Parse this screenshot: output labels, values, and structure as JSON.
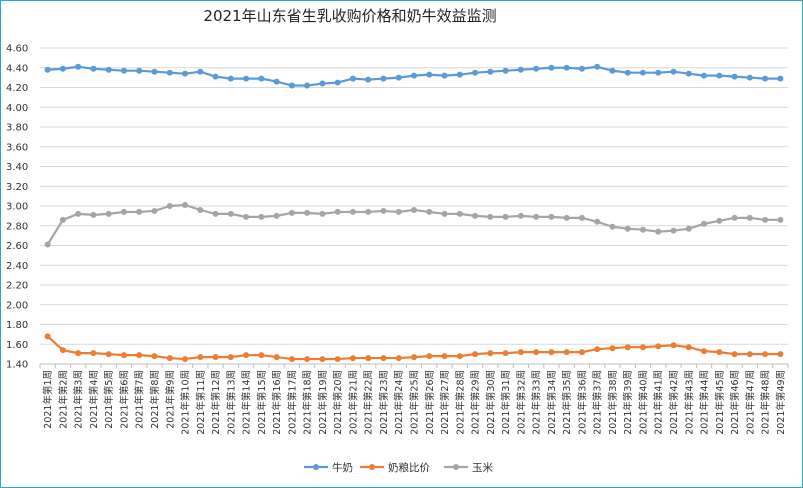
{
  "chart_data": {
    "type": "line",
    "title": "2021年山东省生乳收购价格和奶牛效益监测",
    "xlabel": "",
    "ylabel": "",
    "ylim": [
      1.4,
      4.6
    ],
    "yticks": [
      "1.40",
      "1.60",
      "1.80",
      "2.00",
      "2.20",
      "2.40",
      "2.60",
      "2.80",
      "3.00",
      "3.20",
      "3.40",
      "3.60",
      "3.80",
      "4.00",
      "4.20",
      "4.40",
      "4.60"
    ],
    "grid": true,
    "legend_position": "bottom",
    "categories": [
      "2021年第1周",
      "2021年第2周",
      "2021年第3周",
      "2021年第4周",
      "2021年第5周",
      "2021年第6周",
      "2021年第7周",
      "2021年第8周",
      "2021年第9周",
      "2021年第10周",
      "2021年第11周",
      "2021年第12周",
      "2021年第13周",
      "2021年第14周",
      "2021年第15周",
      "2021年第16周",
      "2021年第17周",
      "2021年第18周",
      "2021年第19周",
      "2021年第20周",
      "2021年第21周",
      "2021年第22周",
      "2021年第23周",
      "2021年第24周",
      "2021年第25周",
      "2021年第26周",
      "2021年第27周",
      "2021年第28周",
      "2021年第29周",
      "2021年第30周",
      "2021年第31周",
      "2021年第32周",
      "2021年第33周",
      "2021年第34周",
      "2021年第35周",
      "2021年第36周",
      "2021年第37周",
      "2021年第38周",
      "2021年第39周",
      "2021年第40周",
      "2021年第41周",
      "2021年第42周",
      "2021年第43周",
      "2021年第44周",
      "2021年第45周",
      "2021年第46周",
      "2021年第47周",
      "2021年第48周",
      "2021年第49周"
    ],
    "series": [
      {
        "name": "牛奶",
        "color": "#5b9bd5",
        "values": [
          4.38,
          4.39,
          4.41,
          4.39,
          4.38,
          4.37,
          4.37,
          4.36,
          4.35,
          4.34,
          4.36,
          4.31,
          4.29,
          4.29,
          4.29,
          4.26,
          4.22,
          4.22,
          4.24,
          4.25,
          4.29,
          4.28,
          4.29,
          4.3,
          4.32,
          4.33,
          4.32,
          4.33,
          4.35,
          4.36,
          4.37,
          4.38,
          4.39,
          4.4,
          4.4,
          4.39,
          4.41,
          4.37,
          4.35,
          4.35,
          4.35,
          4.36,
          4.34,
          4.32,
          4.32,
          4.31,
          4.3,
          4.29,
          4.29
        ]
      },
      {
        "name": "奶粮比价",
        "color": "#ed7d31",
        "values": [
          1.68,
          1.54,
          1.51,
          1.51,
          1.5,
          1.49,
          1.49,
          1.48,
          1.46,
          1.45,
          1.47,
          1.47,
          1.47,
          1.49,
          1.49,
          1.47,
          1.45,
          1.45,
          1.45,
          1.45,
          1.46,
          1.46,
          1.46,
          1.46,
          1.47,
          1.48,
          1.48,
          1.48,
          1.5,
          1.51,
          1.51,
          1.52,
          1.52,
          1.52,
          1.52,
          1.52,
          1.55,
          1.56,
          1.57,
          1.57,
          1.58,
          1.59,
          1.57,
          1.53,
          1.52,
          1.5,
          1.5,
          1.5,
          1.5
        ]
      },
      {
        "name": "玉米",
        "color": "#a5a5a5",
        "values": [
          2.61,
          2.86,
          2.92,
          2.91,
          2.92,
          2.94,
          2.94,
          2.95,
          3.0,
          3.01,
          2.96,
          2.92,
          2.92,
          2.89,
          2.89,
          2.9,
          2.93,
          2.93,
          2.92,
          2.94,
          2.94,
          2.94,
          2.95,
          2.94,
          2.96,
          2.94,
          2.92,
          2.92,
          2.9,
          2.89,
          2.89,
          2.9,
          2.89,
          2.89,
          2.88,
          2.88,
          2.84,
          2.79,
          2.77,
          2.76,
          2.74,
          2.75,
          2.77,
          2.82,
          2.85,
          2.88,
          2.88,
          2.86,
          2.86
        ]
      }
    ]
  }
}
